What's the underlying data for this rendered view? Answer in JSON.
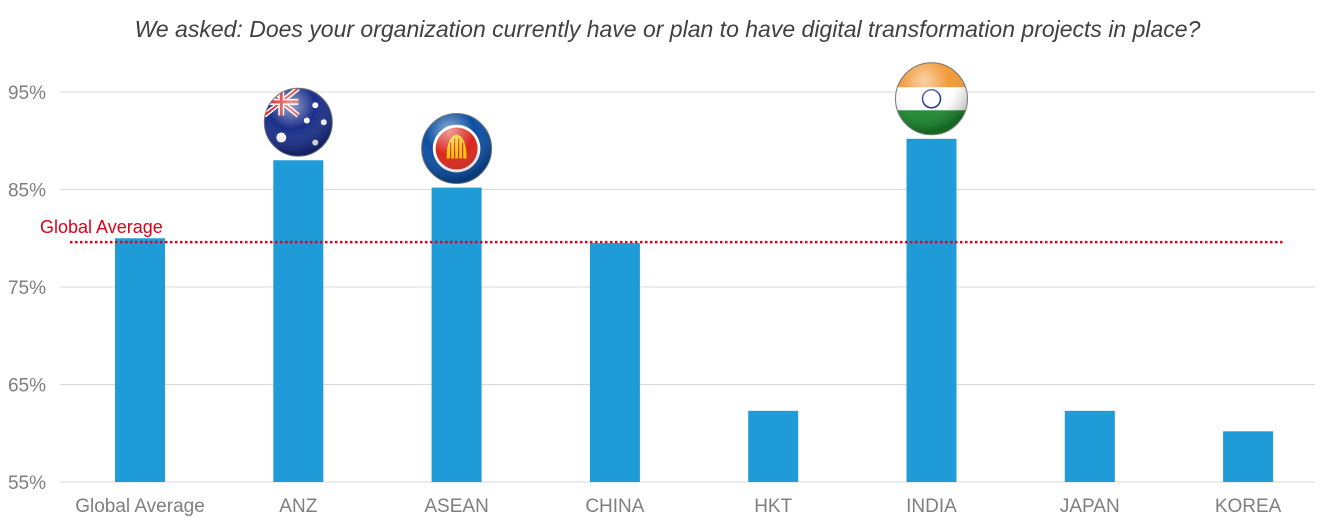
{
  "chart_data": {
    "type": "bar",
    "title": "We asked: Does your organization currently have or plan to have digital transformation projects in place?",
    "xlabel": "",
    "ylabel": "",
    "categories": [
      "Global Average",
      "ANZ",
      "ASEAN",
      "CHINA",
      "HKT",
      "INDIA",
      "JAPAN",
      "KOREA"
    ],
    "values": [
      80,
      88,
      85.2,
      79.5,
      62.3,
      90.2,
      62.3,
      60.2
    ],
    "ylim": [
      55,
      97
    ],
    "yticks": [
      55,
      65,
      75,
      85,
      95
    ],
    "ytick_labels": [
      "55%",
      "65%",
      "75%",
      "85%",
      "95%"
    ],
    "grid": true,
    "bar_color": "#1f9bd7",
    "reference_line": {
      "label": "Global Average",
      "value": 79.6,
      "color": "#e0001b"
    },
    "flag_icons": {
      "ANZ": "australia-flag",
      "ASEAN": "asean-emblem",
      "INDIA": "india-flag"
    }
  }
}
